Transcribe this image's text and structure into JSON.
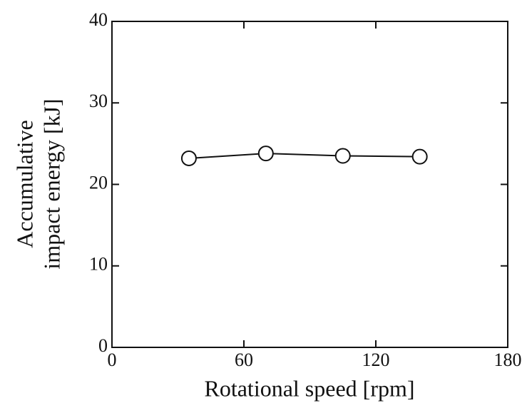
{
  "chart_data": {
    "type": "line",
    "x_label": "Rotational speed [rpm]",
    "y_label": [
      "Accumulative",
      "impact energy [kJ]"
    ],
    "x": [
      35,
      70,
      105,
      140
    ],
    "series": [
      {
        "color": "#111111",
        "values": [
          23.2,
          23.8,
          23.5,
          23.4
        ]
      }
    ],
    "xlim": [
      0,
      180
    ],
    "xticks": [
      0,
      60,
      120,
      180
    ],
    "ylim": [
      0,
      40
    ],
    "yticks": [
      0,
      10,
      20,
      30,
      40
    ],
    "marker": "open-circle",
    "grid": false
  }
}
